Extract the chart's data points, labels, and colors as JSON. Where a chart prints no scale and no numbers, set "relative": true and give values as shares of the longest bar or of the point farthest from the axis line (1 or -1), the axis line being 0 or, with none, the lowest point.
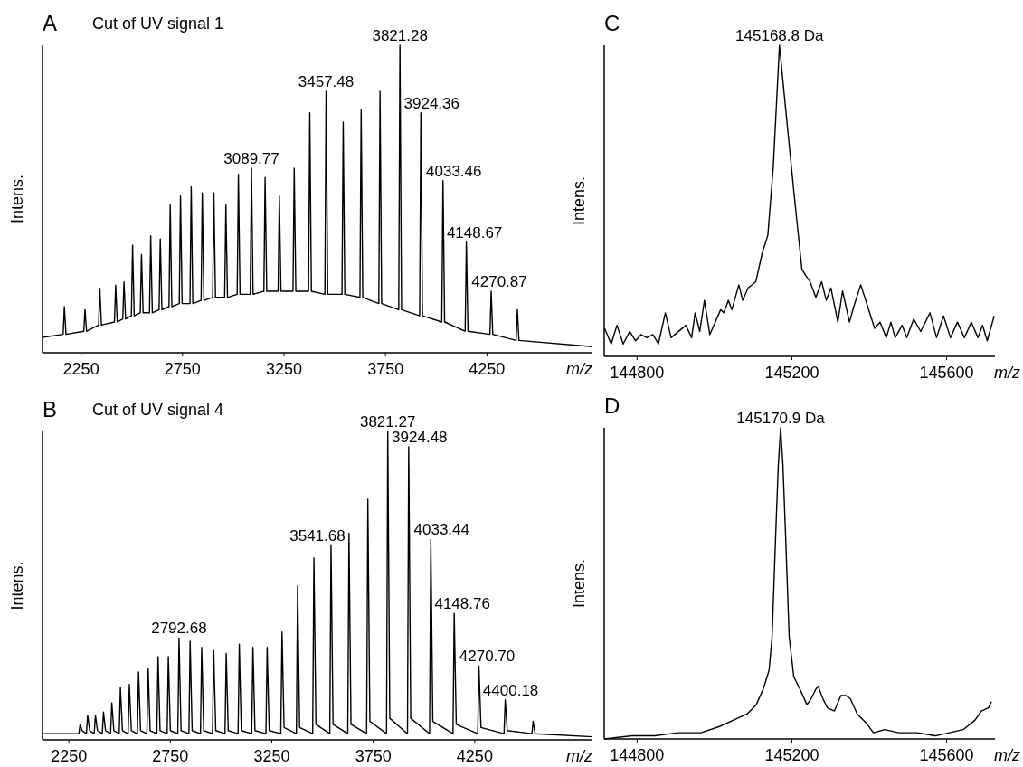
{
  "chart_data": [
    {
      "type": "line",
      "title": "A",
      "subtitle": "Cut of UV signal 1",
      "xlabel": "m/z",
      "ylabel": "Intens.",
      "relative": true,
      "xlim": [
        2060,
        4770
      ],
      "xticks": [
        2250,
        2750,
        3250,
        3750,
        4250
      ],
      "series": [
        {
          "color": "#000000",
          "x": [
            2060,
            2161.7,
            2167.7,
            2175.7,
            2263.3,
            2269.3,
            2277.3,
            2336.4,
            2342.4,
            2350.4,
            2414.5,
            2420.5,
            2428.5,
            2455.5,
            2461.5,
            2469.5,
            2497.9,
            2503.9,
            2511.9,
            2541.8,
            2547.8,
            2555.8,
            2587.2,
            2593.2,
            2601.2,
            2634.4,
            2640.4,
            2648.4,
            2683.3,
            2689.3,
            2697.3,
            2734.0,
            2740.0,
            2748.0,
            2786.7,
            2792.7,
            2800.7,
            2841.4,
            2847.4,
            2855.4,
            2898.4,
            2904.4,
            2912.4,
            2957.6,
            2963.6,
            2971.6,
            3019.3,
            3025.3,
            3033.3,
            3083.7,
            3089.7,
            3097.7,
            3150.9,
            3156.9,
            3164.9,
            3221.0,
            3227.0,
            3235.0,
            3294.3,
            3300.3,
            3308.3,
            3371.0,
            3377.0,
            3385.0,
            3451.4,
            3457.4,
            3465.4,
            3535.7,
            3541.7,
            3549.7,
            3624.2,
            3630.2,
            3638.2,
            3717.2,
            3723.2,
            3731.2,
            3815.3,
            3821.3,
            3829.3,
            3918.4,
            3924.4,
            3932.4,
            4027.5,
            4033.5,
            4041.5,
            4142.7,
            4148.7,
            4156.7,
            4264.9,
            4270.9,
            4278.9,
            4394.0,
            4400.0,
            4408.0,
            4770
          ],
          "values": [
            0.05,
            0.06,
            0.15,
            0.06,
            0.07,
            0.14,
            0.07,
            0.09,
            0.21,
            0.09,
            0.1,
            0.22,
            0.1,
            0.11,
            0.23,
            0.11,
            0.12,
            0.35,
            0.12,
            0.13,
            0.32,
            0.13,
            0.13,
            0.38,
            0.13,
            0.14,
            0.37,
            0.14,
            0.15,
            0.48,
            0.15,
            0.16,
            0.51,
            0.16,
            0.16,
            0.54,
            0.16,
            0.17,
            0.52,
            0.17,
            0.18,
            0.52,
            0.18,
            0.18,
            0.48,
            0.18,
            0.19,
            0.58,
            0.19,
            0.19,
            0.6,
            0.19,
            0.2,
            0.57,
            0.2,
            0.2,
            0.51,
            0.2,
            0.2,
            0.6,
            0.2,
            0.2,
            0.78,
            0.2,
            0.19,
            0.85,
            0.19,
            0.19,
            0.75,
            0.19,
            0.18,
            0.79,
            0.18,
            0.16,
            0.85,
            0.16,
            0.14,
            1,
            0.14,
            0.12,
            0.78,
            0.12,
            0.1,
            0.56,
            0.1,
            0.07,
            0.36,
            0.07,
            0.06,
            0.2,
            0.06,
            0.04,
            0.14,
            0.04,
            0.02
          ]
        }
      ],
      "annotations": [
        {
          "text": "3821.28",
          "x": 3821.3,
          "y": 1
        },
        {
          "text": "3457.48",
          "x": 3457.4,
          "y": 0.85
        },
        {
          "text": "3924.36",
          "x": 3924.4,
          "y": 0.78
        },
        {
          "text": "3089.77",
          "x": 3089.7,
          "y": 0.6
        },
        {
          "text": "4033.46",
          "x": 4033.5,
          "y": 0.56
        },
        {
          "text": "4148.67",
          "x": 4148.7,
          "y": 0.36
        },
        {
          "text": "4270.87",
          "x": 4270.9,
          "y": 0.2
        }
      ]
    },
    {
      "type": "line",
      "title": "C",
      "xlabel": "m/z",
      "ylabel": "Intens.",
      "relative": true,
      "xlim": [
        144715,
        145725
      ],
      "xticks": [
        144800,
        145200,
        145600
      ],
      "series": [
        {
          "color": "#000000",
          "x": [
            144716,
            144733,
            144748,
            144764,
            144781,
            144796,
            144810,
            144825,
            144841,
            144855,
            144873,
            144888,
            144926,
            144941,
            144950,
            144962,
            144974,
            144988,
            145016,
            145024,
            145036,
            145045,
            145063,
            145073,
            145087,
            145107,
            145123,
            145138,
            145152,
            145168,
            145186,
            145206,
            145226,
            145236,
            145247,
            145262,
            145277,
            145289,
            145301,
            145319,
            145331,
            145349,
            145360,
            145378,
            145396,
            145414,
            145428,
            145444,
            145456,
            145467,
            145485,
            145497,
            145515,
            145533,
            145557,
            145574,
            145592,
            145610,
            145628,
            145646,
            145664,
            145681,
            145693,
            145705,
            145723
          ],
          "values": [
            0.09,
            0.04,
            0.1,
            0.04,
            0.08,
            0.05,
            0.07,
            0.06,
            0.07,
            0.04,
            0.14,
            0.06,
            0.1,
            0.06,
            0.14,
            0.08,
            0.18,
            0.07,
            0.15,
            0.14,
            0.18,
            0.15,
            0.23,
            0.18,
            0.22,
            0.24,
            0.33,
            0.39,
            0.61,
            1,
            0.77,
            0.52,
            0.28,
            0.26,
            0.24,
            0.19,
            0.24,
            0.18,
            0.22,
            0.11,
            0.21,
            0.11,
            0.16,
            0.23,
            0.16,
            0.09,
            0.11,
            0.06,
            0.11,
            0.06,
            0.1,
            0.06,
            0.12,
            0.08,
            0.14,
            0.06,
            0.13,
            0.06,
            0.11,
            0.06,
            0.11,
            0.06,
            0.1,
            0.05,
            0.13
          ]
        }
      ],
      "annotations": [
        {
          "text": "145168.8 Da",
          "x": 145168,
          "y": 1
        }
      ]
    },
    {
      "type": "line",
      "title": "B",
      "subtitle": "Cut of UV signal 4",
      "xlabel": "m/z",
      "ylabel": "Intens.",
      "relative": true,
      "xlim": [
        2120,
        4830
      ],
      "xticks": [
        2250,
        2750,
        3250,
        3750,
        4250
      ],
      "series": [
        {
          "color": "#000000",
          "x": [
            2120,
            2299.2,
            2305.2,
            2315.2,
            2336.4,
            2342.4,
            2352.4,
            2374.8,
            2380.8,
            2390.8,
            2414.5,
            2420.5,
            2430.5,
            2455.5,
            2461.5,
            2471.5,
            2497.9,
            2503.9,
            2513.9,
            2541.8,
            2547.8,
            2557.8,
            2587.2,
            2593.2,
            2603.2,
            2634.4,
            2640.4,
            2650.4,
            2683.3,
            2689.3,
            2699.3,
            2734.0,
            2740.0,
            2750.0,
            2786.7,
            2792.7,
            2802.7,
            2841.4,
            2847.4,
            2857.4,
            2898.4,
            2904.4,
            2914.4,
            2957.6,
            2963.6,
            2973.6,
            3019.3,
            3025.3,
            3035.3,
            3083.7,
            3089.7,
            3099.7,
            3150.9,
            3156.9,
            3166.9,
            3221.0,
            3227.0,
            3237.0,
            3294.3,
            3300.3,
            3310.3,
            3371.0,
            3377.0,
            3387.0,
            3451.4,
            3457.4,
            3467.4,
            3535.7,
            3541.7,
            3551.7,
            3624.2,
            3630.2,
            3640.2,
            3717.2,
            3723.2,
            3733.2,
            3815.3,
            3821.3,
            3831.3,
            3918.5,
            3924.5,
            3934.5,
            4027.4,
            4033.4,
            4043.4,
            4142.8,
            4148.8,
            4158.8,
            4264.7,
            4270.7,
            4280.7,
            4394.2,
            4400.2,
            4410.2,
            4531.6,
            4537.6,
            4547.6,
            4830
          ],
          "values": [
            0.02,
            0.02,
            0.05,
            0.03,
            0.02,
            0.08,
            0.03,
            0.02,
            0.08,
            0.03,
            0.02,
            0.09,
            0.03,
            0.02,
            0.12,
            0.03,
            0.02,
            0.17,
            0.03,
            0.02,
            0.18,
            0.03,
            0.02,
            0.22,
            0.03,
            0.02,
            0.23,
            0.03,
            0.02,
            0.27,
            0.03,
            0.02,
            0.27,
            0.03,
            0.02,
            0.33,
            0.03,
            0.02,
            0.32,
            0.03,
            0.02,
            0.3,
            0.03,
            0.02,
            0.29,
            0.03,
            0.02,
            0.28,
            0.03,
            0.02,
            0.31,
            0.03,
            0.02,
            0.3,
            0.03,
            0.02,
            0.3,
            0.03,
            0.02,
            0.35,
            0.04,
            0.02,
            0.5,
            0.04,
            0.02,
            0.59,
            0.05,
            0.02,
            0.63,
            0.05,
            0.02,
            0.67,
            0.05,
            0.02,
            0.78,
            0.06,
            0.02,
            1,
            0.07,
            0.02,
            0.95,
            0.07,
            0.02,
            0.65,
            0.06,
            0.02,
            0.41,
            0.05,
            0.02,
            0.24,
            0.04,
            0.02,
            0.13,
            0.03,
            0.02,
            0.06,
            0.02,
            0.01
          ]
        }
      ],
      "annotations": [
        {
          "text": "3821.27",
          "x": 3821.3,
          "y": 1
        },
        {
          "text": "3924.48",
          "x": 3924.5,
          "y": 0.95
        },
        {
          "text": "4033.44",
          "x": 4033.4,
          "y": 0.65
        },
        {
          "text": "3541.68",
          "x": 3541.7,
          "y": 0.63
        },
        {
          "text": "4148.76",
          "x": 4148.8,
          "y": 0.41
        },
        {
          "text": "2792.68",
          "x": 2792.7,
          "y": 0.33
        },
        {
          "text": "4270.70",
          "x": 4270.7,
          "y": 0.24
        },
        {
          "text": "4400.18",
          "x": 4400.2,
          "y": 0.13
        }
      ]
    },
    {
      "type": "line",
      "title": "D",
      "xlabel": "m/z",
      "ylabel": "Intens.",
      "relative": true,
      "xlim": [
        144715,
        145725
      ],
      "xticks": [
        144800,
        145200,
        145600
      ],
      "series": [
        {
          "color": "#000000",
          "x": [
            144715,
            144787,
            144846,
            144906,
            144965,
            145013,
            145048,
            145084,
            145108,
            145126,
            145141,
            145149,
            145158,
            145165,
            145171,
            145177,
            145184,
            145193,
            145205,
            145221,
            145239,
            145250,
            145262,
            145268,
            145280,
            145292,
            145310,
            145327,
            145339,
            145351,
            145369,
            145393,
            145411,
            145440,
            145476,
            145524,
            145571,
            145607,
            145643,
            145673,
            145690,
            145708,
            145716
          ],
          "values": [
            0,
            0.01,
            0.01,
            0.02,
            0.02,
            0.04,
            0.06,
            0.08,
            0.11,
            0.16,
            0.22,
            0.33,
            0.65,
            0.88,
            1,
            0.88,
            0.65,
            0.33,
            0.2,
            0.16,
            0.11,
            0.13,
            0.16,
            0.17,
            0.13,
            0.1,
            0.09,
            0.14,
            0.14,
            0.13,
            0.08,
            0.05,
            0.02,
            0.03,
            0.02,
            0.02,
            0.01,
            0.02,
            0.03,
            0.06,
            0.09,
            0.1,
            0.12
          ]
        }
      ],
      "annotations": [
        {
          "text": "145170.9 Da",
          "x": 145171,
          "y": 1
        }
      ]
    }
  ]
}
